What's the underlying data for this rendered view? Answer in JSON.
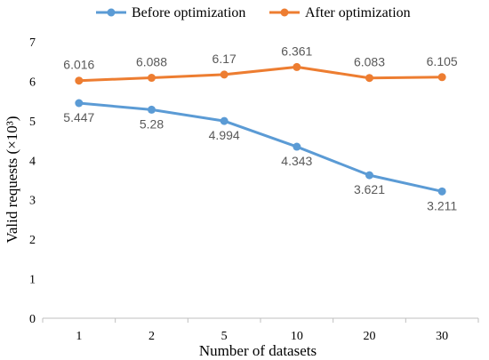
{
  "chart_data": {
    "type": "line",
    "title": "",
    "xlabel": "Number of datasets",
    "ylabel": "Valid requests (×10³)",
    "categories": [
      "1",
      "2",
      "5",
      "10",
      "20",
      "30"
    ],
    "ylim": [
      0,
      7
    ],
    "yticks": [
      "0",
      "1",
      "2",
      "3",
      "4",
      "5",
      "6",
      "7"
    ],
    "grid": false,
    "legend_position": "top",
    "series": [
      {
        "name": "Before optimization",
        "color": "#5B9BD5",
        "values": [
          5.447,
          5.28,
          4.994,
          4.343,
          3.621,
          3.211
        ],
        "labels": [
          "5.447",
          "5.28",
          "4.994",
          "4.343",
          "3.621",
          "3.211"
        ],
        "label_position": "below"
      },
      {
        "name": "After optimization",
        "color": "#ED7D31",
        "values": [
          6.016,
          6.088,
          6.17,
          6.361,
          6.083,
          6.105
        ],
        "labels": [
          "6.016",
          "6.088",
          "6.17",
          "6.361",
          "6.083",
          "6.105"
        ],
        "label_position": "above"
      }
    ]
  }
}
